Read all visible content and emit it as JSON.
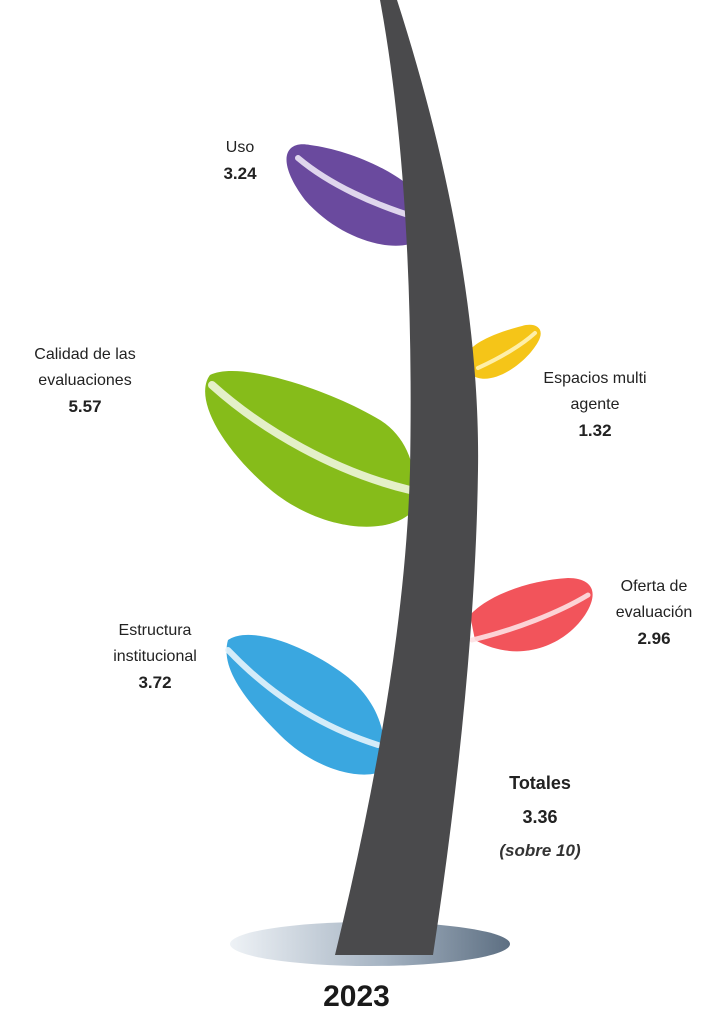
{
  "chart_data": {
    "type": "other",
    "year": "2023",
    "categories": [
      "Uso",
      "Espacios multi agente",
      "Calidad de las evaluaciones",
      "Oferta de evaluación",
      "Estructura institucional"
    ],
    "values": [
      3.24,
      1.32,
      5.57,
      2.96,
      3.72
    ],
    "labels": {
      "uso": "Uso",
      "espacios": "Espacios multi\nagente",
      "calidad": "Calidad de las\nevaluaciones",
      "oferta": "Oferta de\nevaluación",
      "estructura": "Estructura\ninstitucional"
    },
    "value_labels": {
      "uso": "3.24",
      "espacios": "1.32",
      "calidad": "5.57",
      "oferta": "2.96",
      "estructura": "3.72"
    },
    "total": {
      "label": "Totales",
      "value": "3.36",
      "note": "(sobre 10)"
    },
    "colors": {
      "uso": "#6A4A9E",
      "espacios": "#F5C518",
      "calidad": "#86BC1A",
      "oferta": "#F2545B",
      "estructura": "#3AA7E0",
      "stem": "#4A4A4C"
    }
  }
}
